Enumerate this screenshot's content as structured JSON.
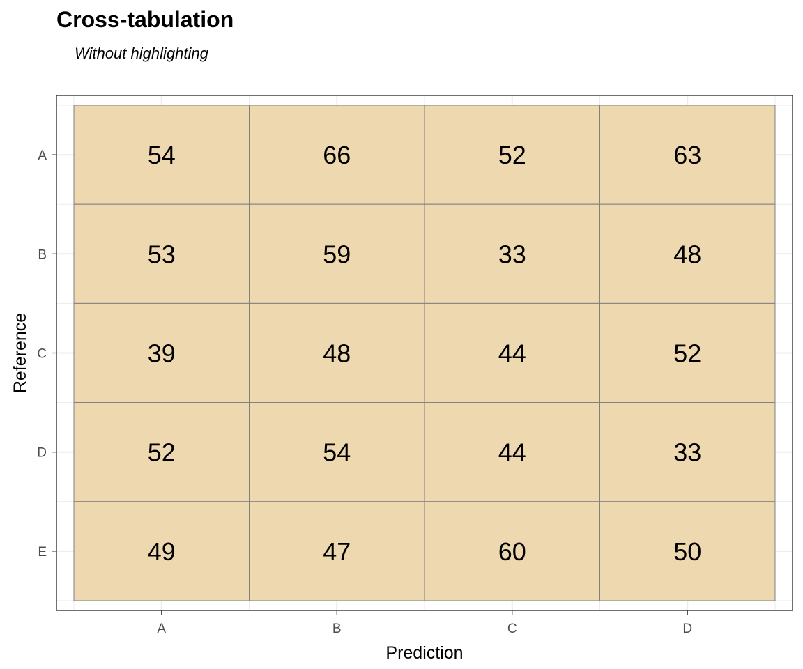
{
  "chart_data": {
    "type": "heatmap",
    "title": "Cross-tabulation",
    "subtitle": "Without highlighting",
    "xlabel": "Prediction",
    "ylabel": "Reference",
    "x_categories": [
      "A",
      "B",
      "C",
      "D"
    ],
    "y_categories": [
      "A",
      "B",
      "C",
      "D",
      "E"
    ],
    "values": [
      [
        54,
        66,
        52,
        63
      ],
      [
        53,
        59,
        33,
        48
      ],
      [
        39,
        48,
        44,
        52
      ],
      [
        52,
        54,
        44,
        33
      ],
      [
        49,
        47,
        60,
        50
      ]
    ],
    "tile_color": "#EDD8B0",
    "tile_border_color": "#808080",
    "grid": true,
    "legend": "none"
  }
}
